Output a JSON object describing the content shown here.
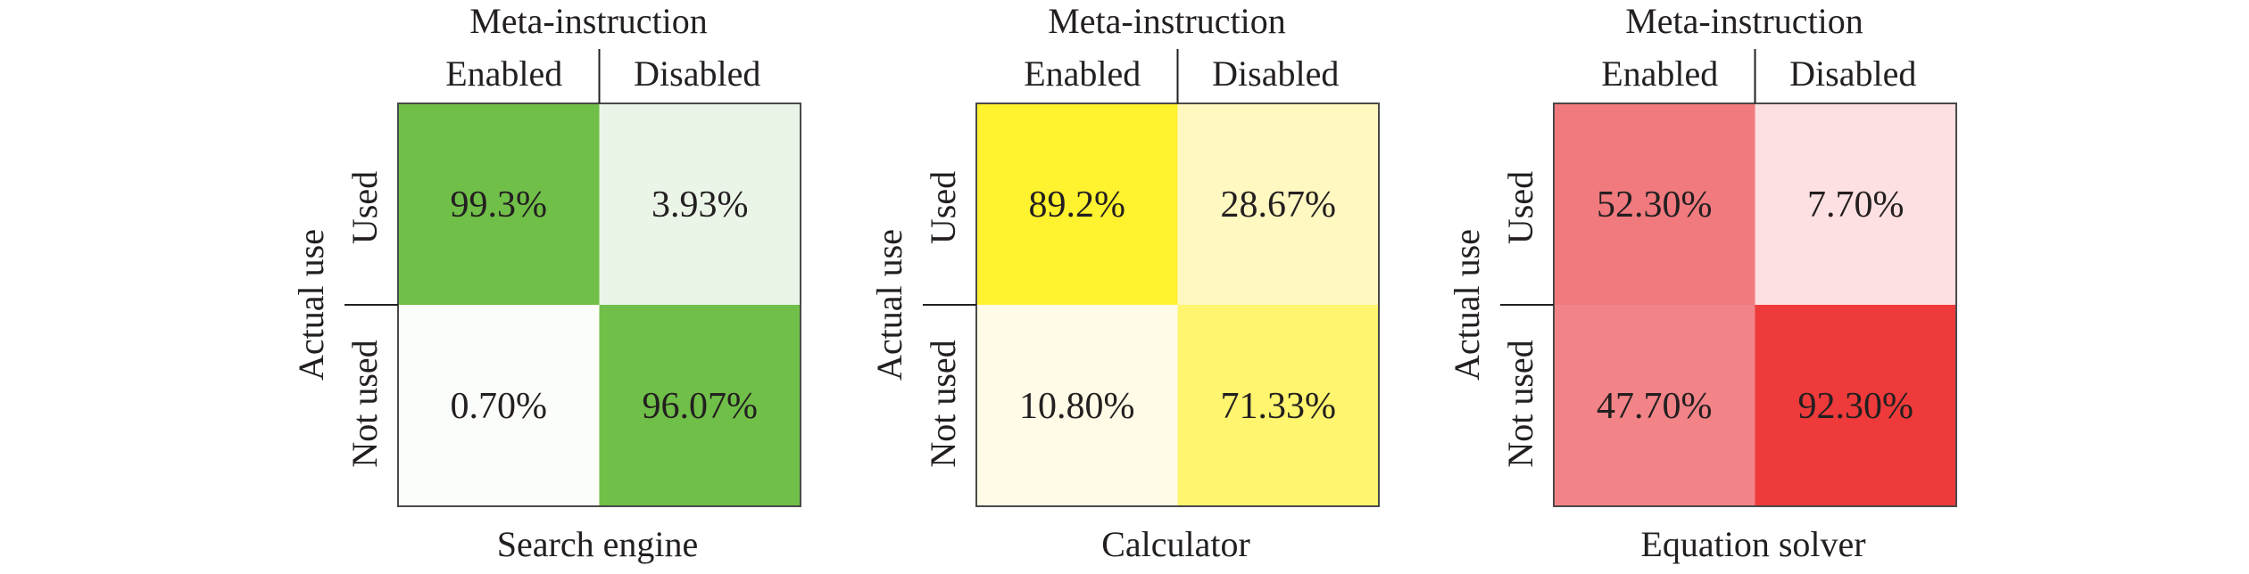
{
  "chart_data": [
    {
      "type": "heatmap",
      "title": "Search engine",
      "xlabel": "Meta-instruction",
      "ylabel": "Actual use",
      "x_categories": [
        "Enabled",
        "Disabled"
      ],
      "y_categories": [
        "Used",
        "Not used"
      ],
      "values": [
        [
          "99.3%",
          "3.93%"
        ],
        [
          "0.70%",
          "96.07%"
        ]
      ],
      "numeric_values": [
        [
          99.3,
          3.93
        ],
        [
          0.7,
          96.07
        ]
      ],
      "colors": [
        [
          "#70bf48",
          "#eaf5e8"
        ],
        [
          "#fbfdfa",
          "#70bf48"
        ]
      ]
    },
    {
      "type": "heatmap",
      "title": "Calculator",
      "xlabel": "Meta-instruction",
      "ylabel": "Actual use",
      "x_categories": [
        "Enabled",
        "Disabled"
      ],
      "y_categories": [
        "Used",
        "Not used"
      ],
      "values": [
        [
          "89.2%",
          "28.67%"
        ],
        [
          "10.80%",
          "71.33%"
        ]
      ],
      "numeric_values": [
        [
          89.2,
          28.67
        ],
        [
          10.8,
          71.33
        ]
      ],
      "colors": [
        [
          "#fff22e",
          "#fff8c0"
        ],
        [
          "#fffbe6",
          "#fff56e"
        ]
      ]
    },
    {
      "type": "heatmap",
      "title": "Equation solver",
      "xlabel": "Meta-instruction",
      "ylabel": "Actual use",
      "x_categories": [
        "Enabled",
        "Disabled"
      ],
      "y_categories": [
        "Used",
        "Not used"
      ],
      "values": [
        [
          "52.30%",
          "7.70%"
        ],
        [
          "47.70%",
          "92.30%"
        ]
      ],
      "numeric_values": [
        [
          52.3,
          7.7
        ],
        [
          47.7,
          92.3
        ]
      ],
      "colors": [
        [
          "#f17a7e",
          "#fde0e1"
        ],
        [
          "#f28386",
          "#ee3a3a"
        ]
      ]
    }
  ]
}
